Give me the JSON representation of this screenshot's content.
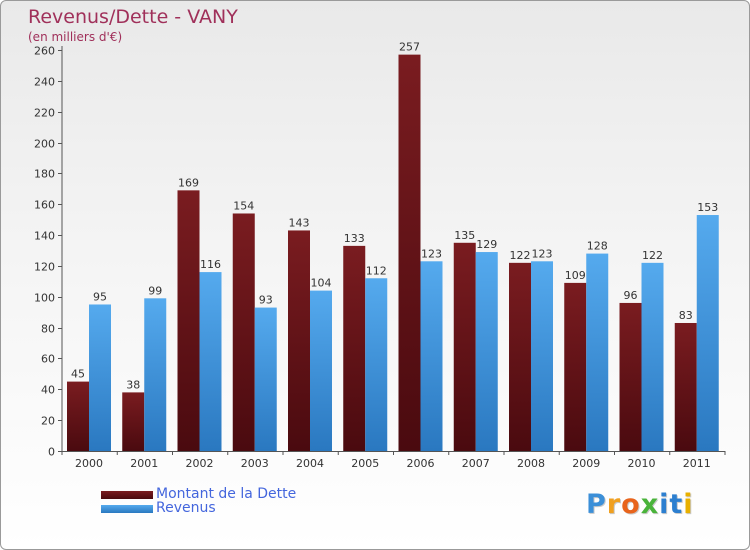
{
  "colors": {
    "title": "#a0305a",
    "dette": "#7a1c20",
    "dette_dark": "#4a0a0f",
    "revenus": "#55aaee",
    "revenus_dark": "#2a78c0",
    "legend_text": "#4466dd"
  },
  "chart_data": {
    "type": "bar",
    "title": "Revenus/Dette - VANY",
    "subtitle": "(en milliers d'€)",
    "xlabel": "",
    "ylabel": "",
    "categories": [
      "2000",
      "2001",
      "2002",
      "2003",
      "2004",
      "2005",
      "2006",
      "2007",
      "2008",
      "2009",
      "2010",
      "2011"
    ],
    "series": [
      {
        "name": "Montant de la Dette",
        "values": [
          45,
          38,
          169,
          154,
          143,
          133,
          257,
          135,
          122,
          109,
          96,
          83
        ]
      },
      {
        "name": "Revenus",
        "values": [
          95,
          99,
          116,
          93,
          104,
          112,
          123,
          129,
          123,
          128,
          122,
          153
        ]
      }
    ],
    "ylim": [
      0,
      260
    ],
    "yticks": [
      0,
      20,
      40,
      60,
      80,
      100,
      120,
      140,
      160,
      180,
      200,
      220,
      240,
      260
    ],
    "grid": false,
    "legend_position": "bottom-left"
  },
  "legend": {
    "dette_label": "Montant de la Dette",
    "revenus_label": "Revenus"
  },
  "brand": {
    "letters": [
      "P",
      "r",
      "o",
      "x",
      "i",
      "t",
      "i"
    ],
    "letter_colors": [
      "#3b8fd8",
      "#f0a020",
      "#e8641c",
      "#49b33a",
      "#2c7fd0",
      "#2c7fd0",
      "#e8b000"
    ]
  }
}
